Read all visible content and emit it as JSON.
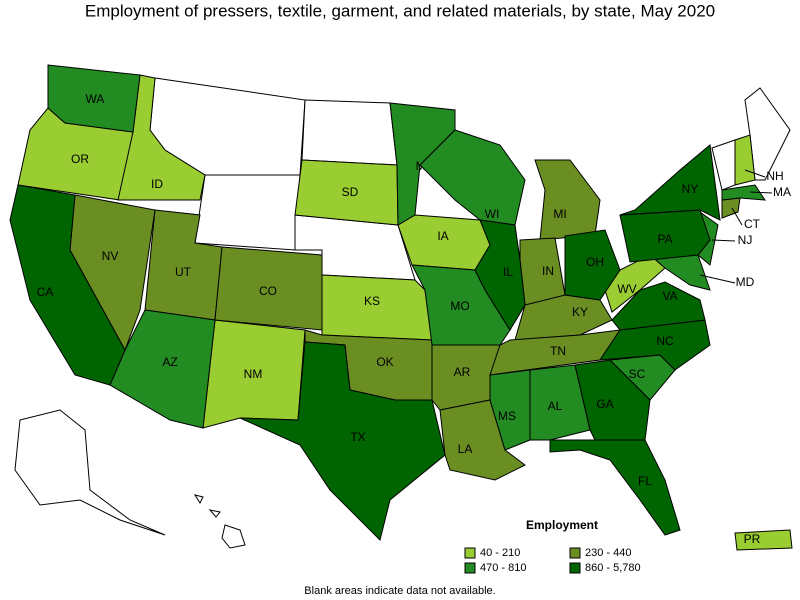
{
  "title": "Employment of pressers, textile, garment, and related materials, by state, May 2020",
  "legend": {
    "title": "Employment",
    "items": [
      {
        "label": "40 - 210",
        "color": "#9acd32",
        "states": [
          "OR",
          "ID",
          "SD",
          "IA",
          "KS",
          "NM",
          "WV",
          "NH",
          "PR"
        ]
      },
      {
        "label": "230 - 440",
        "color": "#6b8e23",
        "states": [
          "NV",
          "UT",
          "CO",
          "OK",
          "AR",
          "LA",
          "MI",
          "IN",
          "KY",
          "TN",
          "CT"
        ]
      },
      {
        "label": "470 - 810",
        "color": "#228b22",
        "states": [
          "WA",
          "AZ",
          "MN",
          "WI",
          "MO",
          "MS",
          "AL",
          "SC",
          "NJ",
          "MA",
          "MD"
        ]
      },
      {
        "label": "860 - 5,780",
        "color": "#006400",
        "states": [
          "CA",
          "TX",
          "IL",
          "OH",
          "GA",
          "FL",
          "NC",
          "VA",
          "PA",
          "NY"
        ]
      }
    ]
  },
  "footnote": "Blank areas indicate data not available."
}
